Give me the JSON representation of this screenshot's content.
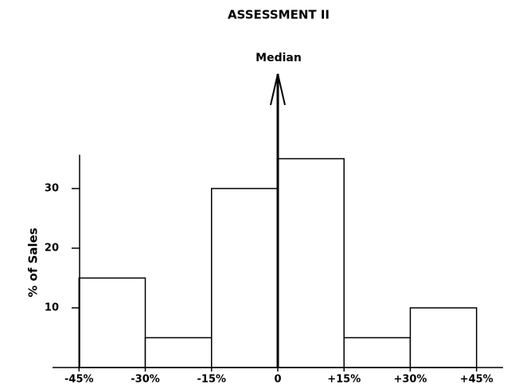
{
  "chart_data": {
    "type": "histogram",
    "title": "ASSESSMENT II",
    "annotation": "Median",
    "y_label": "% of Sales",
    "bins": [
      -45,
      -30,
      -15,
      0,
      15,
      30,
      45
    ],
    "values": [
      15,
      5,
      30,
      35,
      5,
      10
    ],
    "color": "#ffffff",
    "xlim": [
      -51,
      51
    ],
    "ylim": [
      0,
      35
    ],
    "xticks": [
      {
        "value": -45,
        "label": "-45%"
      },
      {
        "value": -30,
        "label": "-30%"
      },
      {
        "value": -15,
        "label": "-15%"
      },
      0,
      {
        "value": 15,
        "label": "+15%"
      },
      {
        "value": 30,
        "label": "+30%"
      },
      {
        "value": 45,
        "label": "+45%"
      }
    ],
    "yticks": [
      10,
      20,
      30
    ]
  }
}
